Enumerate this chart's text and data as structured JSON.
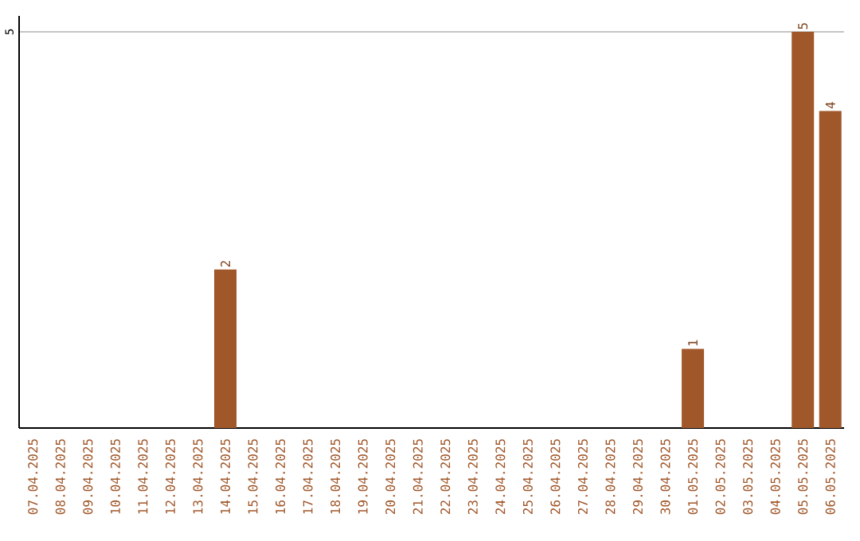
{
  "chart_data": {
    "type": "bar",
    "categories": [
      "07.04.2025",
      "08.04.2025",
      "09.04.2025",
      "10.04.2025",
      "11.04.2025",
      "12.04.2025",
      "13.04.2025",
      "14.04.2025",
      "15.04.2025",
      "16.04.2025",
      "17.04.2025",
      "18.04.2025",
      "19.04.2025",
      "20.04.2025",
      "21.04.2025",
      "22.04.2025",
      "23.04.2025",
      "24.04.2025",
      "25.04.2025",
      "26.04.2025",
      "27.04.2025",
      "28.04.2025",
      "29.04.2025",
      "30.04.2025",
      "01.05.2025",
      "02.05.2025",
      "03.05.2025",
      "04.05.2025",
      "05.05.2025",
      "06.05.2025"
    ],
    "values": [
      0,
      0,
      0,
      0,
      0,
      0,
      0,
      2,
      0,
      0,
      0,
      0,
      0,
      0,
      0,
      0,
      0,
      0,
      0,
      0,
      0,
      0,
      0,
      0,
      1,
      0,
      0,
      0,
      5,
      4
    ],
    "value_labels": [
      null,
      null,
      null,
      null,
      null,
      null,
      null,
      "2",
      null,
      null,
      null,
      null,
      null,
      null,
      null,
      null,
      null,
      null,
      null,
      null,
      null,
      null,
      null,
      null,
      "1",
      null,
      null,
      null,
      "5",
      "4"
    ],
    "color": "#a0572a",
    "ylim": [
      0,
      5.2
    ],
    "yticks": [
      5
    ],
    "grid": "y"
  }
}
